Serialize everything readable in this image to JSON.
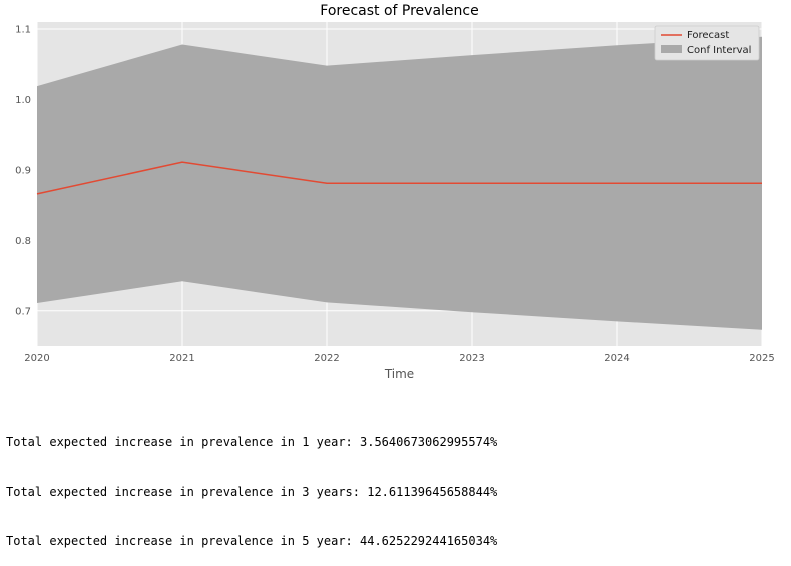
{
  "chart_data": {
    "type": "line",
    "title": "Forecast of Prevalence",
    "xlabel": "Time",
    "ylabel": "",
    "x": [
      2020,
      2021,
      2022,
      2023,
      2024,
      2025
    ],
    "xlim": [
      2020,
      2025
    ],
    "ylim": [
      0.65,
      1.11
    ],
    "yticks": [
      0.7,
      0.8,
      0.9,
      1.0,
      1.1
    ],
    "ytick_labels": [
      "0.7",
      "0.8",
      "0.9",
      "1.0",
      "1.1"
    ],
    "xtick_labels": [
      "2020",
      "2021",
      "2022",
      "2023",
      "2024",
      "2025"
    ],
    "grid": true,
    "legend_position": "top-right",
    "colors": {
      "background": "#e5e5e5",
      "grid": "#ffffff",
      "forecast": "#e24a33",
      "interval": "#a9a9a9"
    },
    "series": [
      {
        "name": "Forecast",
        "values": [
          0.866,
          0.911,
          0.881,
          0.881,
          0.881,
          0.881
        ]
      }
    ],
    "interval": {
      "name": "Conf Interval",
      "lower": [
        0.711,
        0.742,
        0.712,
        0.698,
        0.685,
        0.673
      ],
      "upper": [
        1.019,
        1.078,
        1.048,
        1.063,
        1.077,
        1.089
      ]
    }
  },
  "output_lines": [
    "Total expected increase in prevalence in 1 year: 3.5640673062995574%",
    "Total expected increase in prevalence in 3 years: 12.61139645658844%",
    "Total expected increase in prevalence in 5 year: 44.625229244165034%"
  ]
}
